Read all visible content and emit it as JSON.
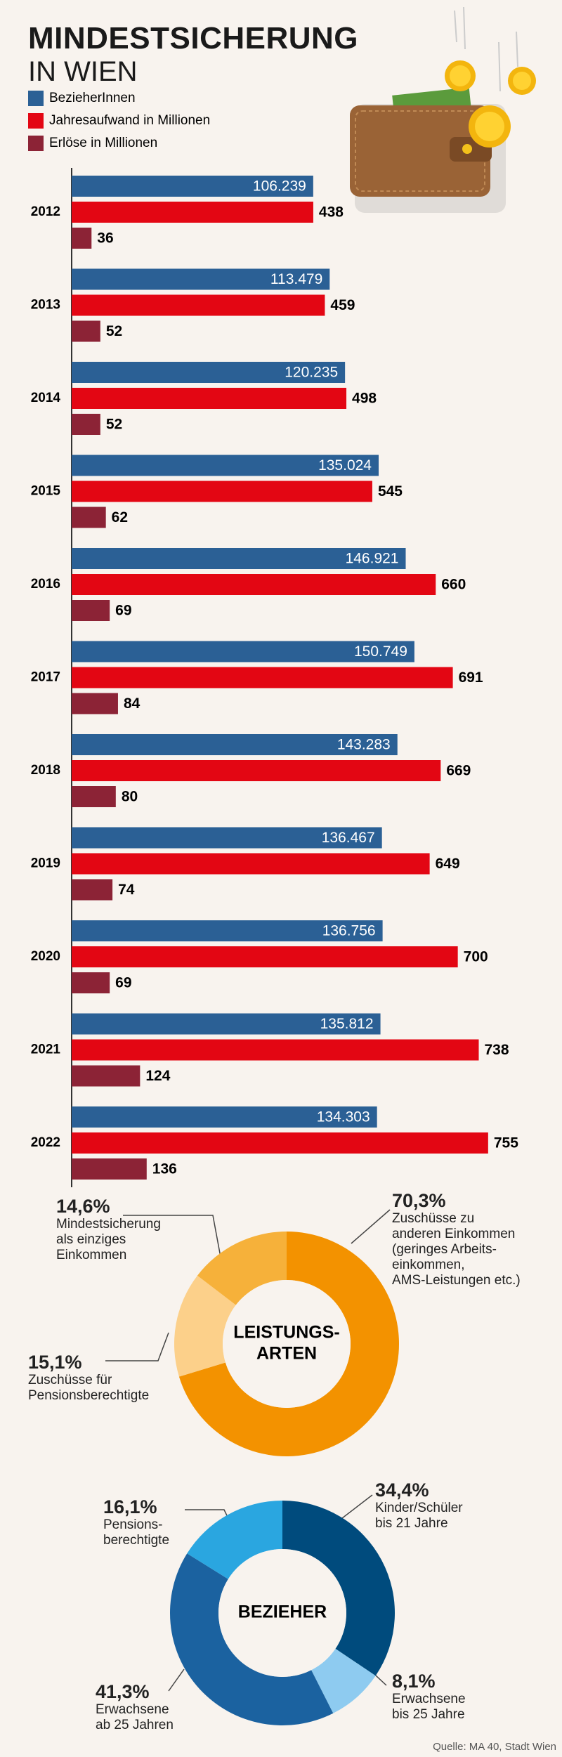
{
  "chart_data": [
    {
      "type": "hbar",
      "title": "MINDESTSICHERUNG",
      "subtitle": "IN WIEN",
      "categories": [
        "2012",
        "2013",
        "2014",
        "2015",
        "2016",
        "2017",
        "2018",
        "2019",
        "2020",
        "2021",
        "2022"
      ],
      "series": [
        {
          "name": "BezieherInnen",
          "color": "#2b6095",
          "axis": "x2",
          "values": [
            106239,
            113479,
            120235,
            135024,
            146921,
            150749,
            143283,
            136467,
            136756,
            135812,
            134303
          ],
          "value_labels": [
            "106.239",
            "113.479",
            "120.235",
            "135.024",
            "146.921",
            "150.749",
            "143.283",
            "136.467",
            "136.756",
            "135.812",
            "134.303"
          ]
        },
        {
          "name": "Jahresaufwand in Millionen",
          "color": "#e30613",
          "values": [
            438,
            459,
            498,
            545,
            660,
            691,
            669,
            649,
            700,
            738,
            755
          ]
        },
        {
          "name": "Erlöse in Millionen",
          "color": "#8c2336",
          "values": [
            36,
            52,
            52,
            62,
            69,
            84,
            80,
            74,
            69,
            124,
            136
          ]
        }
      ],
      "xlim": [
        0,
        880
      ],
      "x2lim": [
        0,
        213500
      ]
    },
    {
      "type": "donut",
      "title": [
        "LEISTUNGS-",
        "ARTEN"
      ],
      "categories": [
        "Zuschüsse zu\nanderen Einkommen\n(geringes Arbeits-\neinkommen,\nAMS-Leistungen etc.)",
        "Zuschüsse für\nPensionsberechtigte",
        "Mindestsicherung\nals einziges\nEinkommen"
      ],
      "values": [
        70.3,
        15.1,
        14.6
      ],
      "value_labels": [
        "70,3%",
        "15,1%",
        "14,6%"
      ],
      "colors": [
        "#f39200",
        "#fcd08a",
        "#f6b13a"
      ]
    },
    {
      "type": "donut",
      "title": [
        "BEZIEHER"
      ],
      "categories": [
        "Kinder/Schüler\nbis 21 Jahre",
        "Erwachsene\nbis 25 Jahre",
        "Erwachsene\nab 25 Jahren",
        "Pensions-\nberechtigte"
      ],
      "values": [
        34.4,
        8.1,
        41.3,
        16.1
      ],
      "value_labels": [
        "34,4%",
        "8,1%",
        "41,3%",
        "16,1%"
      ],
      "colors": [
        "#004b7d",
        "#8ecbf0",
        "#1b62a0",
        "#2aa6e0"
      ],
      "source": "Quelle: MA 40, Stadt Wien"
    }
  ]
}
